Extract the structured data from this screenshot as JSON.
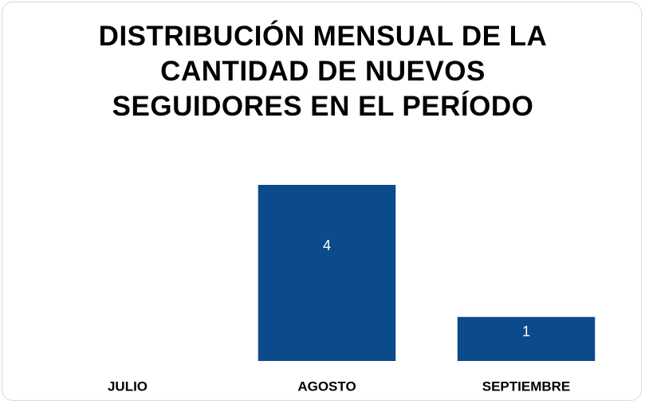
{
  "chart_data": {
    "type": "bar",
    "title": "DISTRIBUCIÓN MENSUAL DE LA CANTIDAD DE NUEVOS SEGUIDORES EN EL PERÍODO",
    "categories": [
      "JULIO",
      "AGOSTO",
      "SEPTIEMBRE"
    ],
    "values": [
      0,
      4,
      1
    ],
    "value_labels": [
      null,
      "4",
      "1"
    ],
    "color": "#0b4a8b",
    "ylim": [
      0,
      4
    ]
  }
}
